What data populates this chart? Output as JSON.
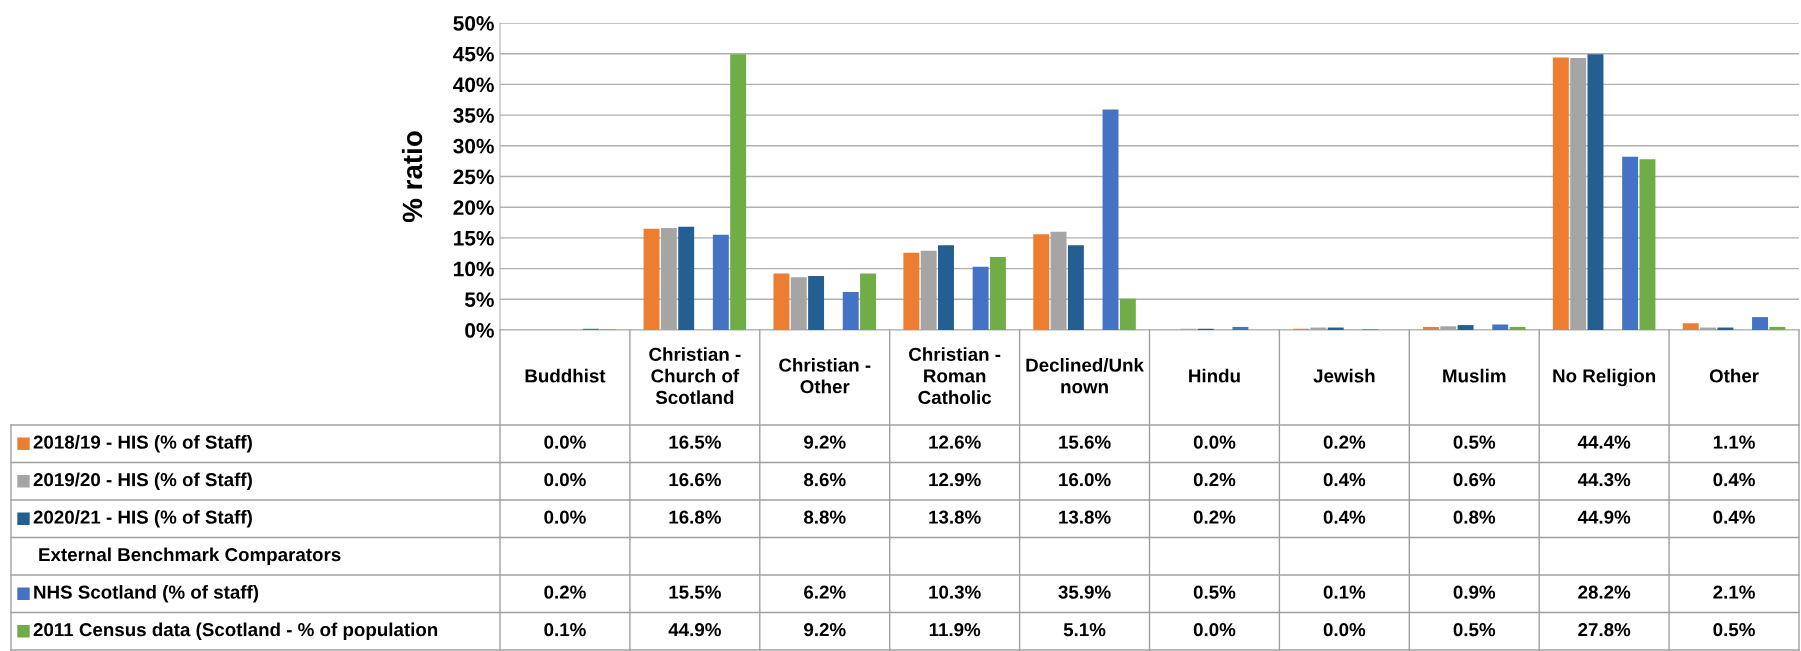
{
  "chart_data": {
    "type": "bar",
    "ylabel": "% ratio",
    "categories": [
      "Buddhist",
      "Christian - Church of Scotland",
      "Christian - Other",
      "Christian - Roman Catholic",
      "Declined/Unknown",
      "Hindu",
      "Jewish",
      "Muslim",
      "No Religion",
      "Other"
    ],
    "series": [
      {
        "name": "2018/19 - HIS (% of Staff)",
        "color": "#ed7d31",
        "values": [
          0.0,
          16.5,
          9.2,
          12.6,
          15.6,
          0.0,
          0.2,
          0.5,
          44.4,
          1.1
        ],
        "value_labels": [
          "0.0%",
          "16.5%",
          "9.2%",
          "12.6%",
          "15.6%",
          "0.0%",
          "0.2%",
          "0.5%",
          "44.4%",
          "1.1%"
        ]
      },
      {
        "name": "2019/20 - HIS (% of Staff)",
        "color": "#a5a5a5",
        "values": [
          0.0,
          16.6,
          8.6,
          12.9,
          16.0,
          0.2,
          0.4,
          0.6,
          44.3,
          0.4
        ],
        "value_labels": [
          "0.0%",
          "16.6%",
          "8.6%",
          "12.9%",
          "16.0%",
          "0.2%",
          "0.4%",
          "0.6%",
          "44.3%",
          "0.4%"
        ]
      },
      {
        "name": "2020/21 - HIS (% of Staff)",
        "color": "#255e91",
        "values": [
          0.0,
          16.8,
          8.8,
          13.8,
          13.8,
          0.2,
          0.4,
          0.8,
          44.9,
          0.4
        ],
        "value_labels": [
          "0.0%",
          "16.8%",
          "8.8%",
          "13.8%",
          "13.8%",
          "0.2%",
          "0.4%",
          "0.8%",
          "44.9%",
          "0.4%"
        ]
      },
      {
        "name": "External Benchmark Comparators",
        "values": [
          null,
          null,
          null,
          null,
          null,
          null,
          null,
          null,
          null,
          null
        ]
      },
      {
        "name": "NHS Scotland (% of staff)",
        "color": "#4472c4",
        "values": [
          0.2,
          15.5,
          6.2,
          10.3,
          35.9,
          0.5,
          0.1,
          0.9,
          28.2,
          2.1
        ],
        "value_labels": [
          "0.2%",
          "15.5%",
          "6.2%",
          "10.3%",
          "35.9%",
          "0.5%",
          "0.1%",
          "0.9%",
          "28.2%",
          "2.1%"
        ]
      },
      {
        "name": "2011 Census data (Scotland - % of population",
        "color": "#70ad47",
        "values": [
          0.1,
          44.9,
          9.2,
          11.9,
          5.1,
          0.0,
          0.0,
          0.5,
          27.8,
          0.5
        ],
        "value_labels": [
          "0.1%",
          "44.9%",
          "9.2%",
          "11.9%",
          "5.1%",
          "0.0%",
          "0.0%",
          "0.5%",
          "27.8%",
          "0.5%"
        ]
      }
    ],
    "ylim": [
      0,
      50
    ],
    "yticks": [
      {
        "value": 0,
        "label": "0%"
      },
      {
        "value": 5,
        "label": "5%"
      },
      {
        "value": 10,
        "label": "10%"
      },
      {
        "value": 15,
        "label": "15%"
      },
      {
        "value": 20,
        "label": "20%"
      },
      {
        "value": 25,
        "label": "25%"
      },
      {
        "value": 30,
        "label": "30%"
      },
      {
        "value": 35,
        "label": "35%"
      },
      {
        "value": 40,
        "label": "40%"
      },
      {
        "value": 45,
        "label": "45%"
      },
      {
        "value": 50,
        "label": "50%"
      }
    ],
    "grid": "y",
    "legend": "bottom"
  }
}
